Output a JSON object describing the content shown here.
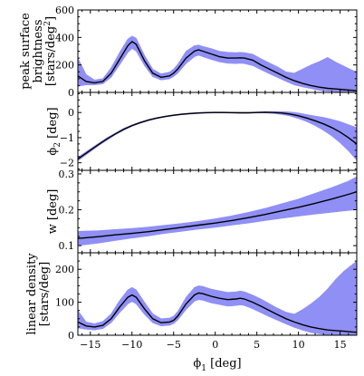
{
  "chart_data": {
    "type": "line",
    "x": {
      "label": "ϕ",
      "label_sub": "1",
      "label_unit": " [deg]",
      "lim": [
        -16.5,
        17
      ],
      "major_ticks": [
        -15,
        -10,
        -5,
        0,
        5,
        10,
        15
      ],
      "tick_labels": [
        "−15",
        "−10",
        "−5",
        "0",
        "5",
        "10",
        "15"
      ]
    },
    "colors": {
      "band": "#8f8ff5",
      "line": "#000000",
      "ink": "#000000"
    },
    "panels": [
      {
        "name": "peak-surface-brightness",
        "ylabel_lines": [
          "peak surface",
          "brightness",
          "[stars/deg"
        ],
        "ylabel_sup": "2",
        "ylabel_end": "]",
        "ylim": [
          0,
          600
        ],
        "major_ticks": [
          0,
          200,
          400,
          600
        ],
        "tick_labels": [
          "0",
          "200",
          "400",
          "600"
        ],
        "minor_step": 50,
        "x": [
          -16.5,
          -15.5,
          -14.5,
          -13.5,
          -12.5,
          -11.5,
          -10.5,
          -10,
          -9.5,
          -8.5,
          -7.5,
          -6.5,
          -5.5,
          -5,
          -4.5,
          -3.5,
          -2.5,
          -2,
          -1.5,
          -0.5,
          0.5,
          1.5,
          2.5,
          3,
          3.5,
          4.5,
          5.5,
          6.5,
          7.5,
          8.5,
          9.5,
          10.5,
          11.5,
          12.5,
          13.5,
          14.5,
          15.5,
          16.5,
          17
        ],
        "mid": [
          120,
          80,
          70,
          80,
          140,
          240,
          340,
          370,
          350,
          230,
          140,
          110,
          120,
          140,
          170,
          250,
          300,
          310,
          300,
          280,
          260,
          250,
          250,
          252,
          250,
          235,
          200,
          170,
          140,
          110,
          85,
          65,
          50,
          38,
          30,
          25,
          20,
          15,
          12
        ],
        "low": [
          45,
          55,
          55,
          62,
          110,
          200,
          290,
          320,
          300,
          195,
          115,
          90,
          98,
          115,
          140,
          210,
          260,
          270,
          260,
          240,
          222,
          212,
          210,
          212,
          210,
          195,
          165,
          135,
          108,
          80,
          55,
          40,
          28,
          15,
          8,
          5,
          3,
          2,
          2
        ],
        "high": [
          250,
          130,
          90,
          100,
          180,
          290,
          390,
          410,
          395,
          270,
          170,
          135,
          148,
          170,
          205,
          300,
          340,
          345,
          335,
          320,
          300,
          292,
          290,
          292,
          290,
          278,
          245,
          215,
          185,
          150,
          140,
          170,
          200,
          225,
          255,
          220,
          190,
          160,
          150
        ]
      },
      {
        "name": "phi2",
        "ylabel_lines": [
          "ϕ"
        ],
        "ylabel_sub": "2",
        "ylabel_end": " [deg]",
        "ylim": [
          -2.3,
          0.8
        ],
        "major_ticks": [
          -2,
          -1,
          0
        ],
        "tick_labels": [
          "−2",
          "−1",
          "0"
        ],
        "minor_step": 0.25,
        "x": [
          -16.5,
          -15,
          -14,
          -13,
          -12,
          -11,
          -10,
          -9,
          -8,
          -7,
          -6,
          -5,
          -4,
          -3,
          -2,
          -1,
          0,
          1,
          2,
          3,
          4,
          5,
          6,
          7,
          8,
          9,
          10,
          11,
          12,
          13,
          14,
          15,
          16,
          17
        ],
        "mid": [
          -1.85,
          -1.5,
          -1.27,
          -1.05,
          -0.85,
          -0.67,
          -0.52,
          -0.4,
          -0.3,
          -0.22,
          -0.16,
          -0.11,
          -0.07,
          -0.04,
          -0.02,
          -0.005,
          0.0,
          0.0,
          -0.005,
          -0.01,
          -0.01,
          0.0,
          0.01,
          0.0,
          -0.02,
          -0.06,
          -0.13,
          -0.22,
          -0.33,
          -0.45,
          -0.6,
          -0.78,
          -1.0,
          -1.25
        ],
        "low": [
          -1.92,
          -1.56,
          -1.32,
          -1.1,
          -0.89,
          -0.71,
          -0.55,
          -0.43,
          -0.33,
          -0.24,
          -0.18,
          -0.13,
          -0.09,
          -0.06,
          -0.04,
          -0.025,
          -0.02,
          -0.02,
          -0.025,
          -0.03,
          -0.03,
          -0.02,
          -0.02,
          -0.04,
          -0.08,
          -0.14,
          -0.24,
          -0.36,
          -0.52,
          -0.71,
          -0.93,
          -1.2,
          -1.52,
          -1.9
        ],
        "high": [
          -1.78,
          -1.44,
          -1.22,
          -1.0,
          -0.81,
          -0.63,
          -0.49,
          -0.37,
          -0.27,
          -0.2,
          -0.14,
          -0.09,
          -0.05,
          -0.02,
          0.0,
          0.015,
          0.02,
          0.02,
          0.015,
          0.01,
          0.01,
          0.02,
          0.04,
          0.04,
          0.04,
          0.02,
          -0.02,
          -0.08,
          -0.14,
          -0.19,
          -0.27,
          -0.36,
          -0.48,
          -0.6
        ]
      },
      {
        "name": "width",
        "ylabel_lines": [
          "w"
        ],
        "ylabel_end": " [deg]",
        "ylim": [
          0.08,
          0.31
        ],
        "major_ticks": [
          0.1,
          0.2,
          0.3
        ],
        "tick_labels": [
          "0.1",
          "0.2",
          "0.3"
        ],
        "minor_step": 0.025,
        "x": [
          -16.5,
          -14,
          -12,
          -10,
          -8,
          -6,
          -4,
          -2,
          0,
          2,
          4,
          6,
          8,
          10,
          12,
          14,
          16,
          17
        ],
        "mid": [
          0.12,
          0.125,
          0.13,
          0.134,
          0.139,
          0.145,
          0.151,
          0.157,
          0.163,
          0.17,
          0.178,
          0.187,
          0.197,
          0.207,
          0.218,
          0.23,
          0.243,
          0.25
        ],
        "low": [
          0.1,
          0.107,
          0.114,
          0.121,
          0.127,
          0.134,
          0.14,
          0.146,
          0.151,
          0.157,
          0.163,
          0.17,
          0.176,
          0.182,
          0.188,
          0.193,
          0.198,
          0.2
        ],
        "high": [
          0.14,
          0.142,
          0.145,
          0.148,
          0.152,
          0.157,
          0.162,
          0.168,
          0.175,
          0.183,
          0.193,
          0.204,
          0.217,
          0.23,
          0.246,
          0.262,
          0.28,
          0.292
        ]
      },
      {
        "name": "linear-density",
        "ylabel_lines": [
          "linear density",
          "[stars/deg]"
        ],
        "ylim": [
          0,
          250
        ],
        "major_ticks": [
          0,
          100,
          200
        ],
        "tick_labels": [
          "0",
          "100",
          "200"
        ],
        "minor_step": 25,
        "x": [
          -16.5,
          -15.5,
          -14.5,
          -13.5,
          -12.5,
          -11.5,
          -10.5,
          -10,
          -9.5,
          -8.5,
          -7.5,
          -6.5,
          -5.5,
          -5,
          -4.5,
          -3.5,
          -2.5,
          -2,
          -1.5,
          -0.5,
          0.5,
          1.5,
          2.5,
          3,
          3.5,
          4.5,
          5.5,
          6.5,
          7.5,
          8.5,
          9.5,
          10.5,
          11.5,
          12.5,
          13.5,
          14.5,
          15.5,
          16.5,
          17
        ],
        "mid": [
          40,
          28,
          25,
          30,
          50,
          85,
          115,
          122,
          115,
          80,
          50,
          38,
          40,
          45,
          58,
          95,
          122,
          128,
          126,
          118,
          112,
          108,
          110,
          112,
          110,
          100,
          88,
          75,
          62,
          50,
          40,
          32,
          25,
          20,
          16,
          14,
          12,
          10,
          9
        ],
        "low": [
          22,
          18,
          16,
          20,
          38,
          68,
          95,
          102,
          95,
          63,
          38,
          28,
          30,
          35,
          46,
          78,
          103,
          108,
          106,
          98,
          93,
          88,
          90,
          92,
          90,
          80,
          68,
          56,
          45,
          34,
          24,
          15,
          8,
          4,
          2,
          1,
          1,
          1,
          1
        ],
        "high": [
          75,
          40,
          35,
          42,
          65,
          105,
          138,
          145,
          138,
          100,
          65,
          50,
          52,
          58,
          72,
          115,
          145,
          150,
          148,
          140,
          135,
          130,
          132,
          134,
          132,
          122,
          110,
          96,
          82,
          70,
          64,
          78,
          95,
          115,
          140,
          170,
          195,
          215,
          225
        ]
      }
    ]
  }
}
